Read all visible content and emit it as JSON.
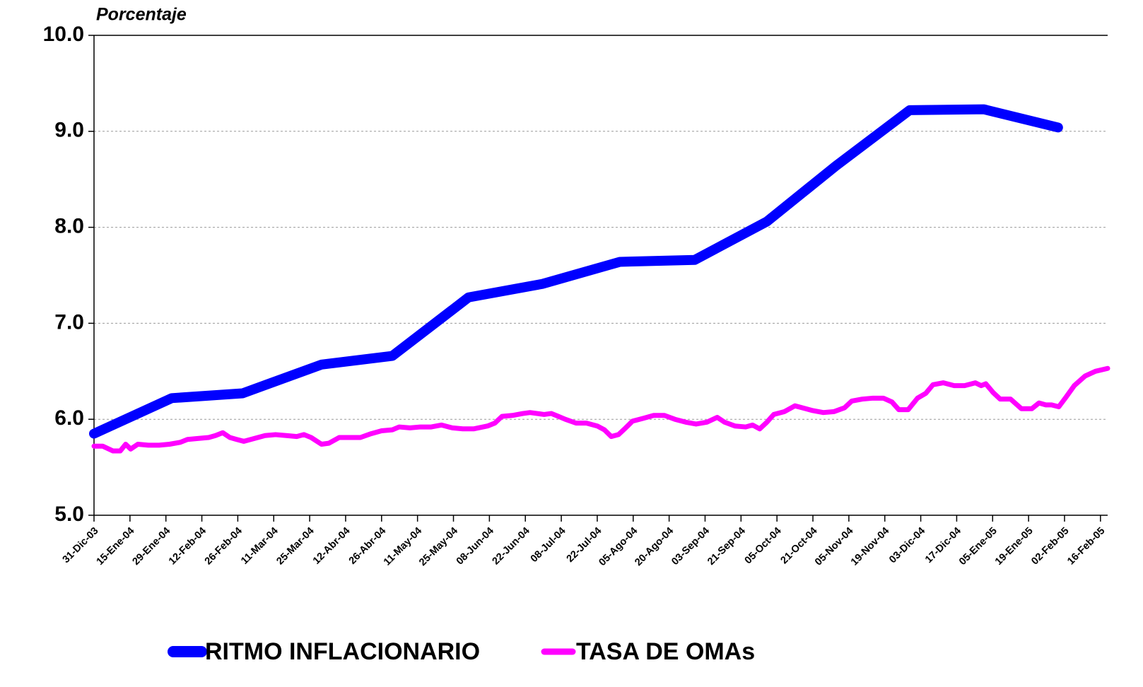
{
  "chart_data": {
    "type": "line",
    "y_axis_label": "Porcentaje",
    "ylim": [
      5,
      10
    ],
    "yticks": [
      {
        "value": 5,
        "label": "5.0"
      },
      {
        "value": 6,
        "label": "6.0"
      },
      {
        "value": 7,
        "label": "7.0"
      },
      {
        "value": 8,
        "label": "8.0"
      },
      {
        "value": 9,
        "label": "9.0"
      },
      {
        "value": 10,
        "label": "10.0"
      }
    ],
    "xlim": [
      0,
      28.2
    ],
    "xticks": [
      {
        "value": 0,
        "label": "31-Dic-03"
      },
      {
        "value": 1,
        "label": "15-Ene-04"
      },
      {
        "value": 2,
        "label": "29-Ene-04"
      },
      {
        "value": 3,
        "label": "12-Feb-04"
      },
      {
        "value": 4,
        "label": "26-Feb-04"
      },
      {
        "value": 5,
        "label": "11-Mar-04"
      },
      {
        "value": 6,
        "label": "25-Mar-04"
      },
      {
        "value": 7,
        "label": "12-Abr-04"
      },
      {
        "value": 8,
        "label": "26-Abr-04"
      },
      {
        "value": 9,
        "label": "11-May-04"
      },
      {
        "value": 10,
        "label": "25-May-04"
      },
      {
        "value": 11,
        "label": "08-Jun-04"
      },
      {
        "value": 12,
        "label": "22-Jun-04"
      },
      {
        "value": 13,
        "label": "08-Jul-04"
      },
      {
        "value": 14,
        "label": "22-Jul-04"
      },
      {
        "value": 15,
        "label": "05-Ago-04"
      },
      {
        "value": 16,
        "label": "20-Ago-04"
      },
      {
        "value": 17,
        "label": "03-Sep-04"
      },
      {
        "value": 18,
        "label": "21-Sep-04"
      },
      {
        "value": 19,
        "label": "05-Oct-04"
      },
      {
        "value": 20,
        "label": "21-Oct-04"
      },
      {
        "value": 21,
        "label": "05-Nov-04"
      },
      {
        "value": 22,
        "label": "19-Nov-04"
      },
      {
        "value": 23,
        "label": "03-Dic-04"
      },
      {
        "value": 24,
        "label": "17-Dic-04"
      },
      {
        "value": 25,
        "label": "05-Ene-05"
      },
      {
        "value": 26,
        "label": "19-Ene-05"
      },
      {
        "value": 27,
        "label": "02-Feb-05"
      },
      {
        "value": 28,
        "label": "16-Feb-05"
      }
    ],
    "grid": true,
    "legend": "bottom",
    "series": [
      {
        "name": "RITMO INFLACIONARIO",
        "color": "#0000ff",
        "x": [
          0,
          2.16,
          4.13,
          6.33,
          8.3,
          10.42,
          12.47,
          14.63,
          16.71,
          18.72,
          20.64,
          22.69,
          24.75,
          26.82
        ],
        "values": [
          5.85,
          6.22,
          6.27,
          6.57,
          6.66,
          7.27,
          7.41,
          7.64,
          7.66,
          8.06,
          8.64,
          9.22,
          9.23,
          9.04
        ]
      },
      {
        "name": "TASA DE OMAs",
        "color": "#ff00ff",
        "x": [
          0,
          0.24,
          0.53,
          0.73,
          0.88,
          1.02,
          1.22,
          1.51,
          1.81,
          2.1,
          2.4,
          2.6,
          2.89,
          3.19,
          3.38,
          3.58,
          3.78,
          3.97,
          4.17,
          4.46,
          4.76,
          5.05,
          5.35,
          5.64,
          5.84,
          6.04,
          6.33,
          6.53,
          6.82,
          7.12,
          7.41,
          7.71,
          8.0,
          8.3,
          8.49,
          8.79,
          9.08,
          9.38,
          9.67,
          9.97,
          10.26,
          10.56,
          10.95,
          11.15,
          11.35,
          11.64,
          11.93,
          12.13,
          12.33,
          12.52,
          12.72,
          12.92,
          13.11,
          13.41,
          13.7,
          14.0,
          14.2,
          14.39,
          14.59,
          14.79,
          14.98,
          15.28,
          15.57,
          15.87,
          16.16,
          16.46,
          16.75,
          17.05,
          17.34,
          17.54,
          17.83,
          18.13,
          18.32,
          18.52,
          18.72,
          18.91,
          19.21,
          19.5,
          19.8,
          20.0,
          20.29,
          20.59,
          20.88,
          21.08,
          21.37,
          21.67,
          21.96,
          22.2,
          22.39,
          22.65,
          22.91,
          23.14,
          23.34,
          23.63,
          23.93,
          24.22,
          24.52,
          24.68,
          24.81,
          25.01,
          25.21,
          25.5,
          25.8,
          26.09,
          26.29,
          26.48,
          26.64,
          26.84,
          27.04,
          27.27,
          27.57,
          27.86,
          28.2
        ],
        "values": [
          5.72,
          5.72,
          5.67,
          5.67,
          5.74,
          5.69,
          5.74,
          5.73,
          5.73,
          5.74,
          5.76,
          5.79,
          5.8,
          5.81,
          5.83,
          5.86,
          5.81,
          5.79,
          5.77,
          5.8,
          5.83,
          5.84,
          5.83,
          5.82,
          5.84,
          5.81,
          5.74,
          5.75,
          5.81,
          5.81,
          5.81,
          5.85,
          5.88,
          5.89,
          5.92,
          5.91,
          5.92,
          5.92,
          5.94,
          5.91,
          5.9,
          5.9,
          5.93,
          5.96,
          6.03,
          6.04,
          6.06,
          6.07,
          6.06,
          6.05,
          6.06,
          6.03,
          6.0,
          5.96,
          5.96,
          5.93,
          5.89,
          5.82,
          5.84,
          5.91,
          5.98,
          6.01,
          6.04,
          6.04,
          6.0,
          5.97,
          5.95,
          5.97,
          6.02,
          5.97,
          5.93,
          5.92,
          5.94,
          5.9,
          5.97,
          6.05,
          6.08,
          6.14,
          6.11,
          6.09,
          6.07,
          6.08,
          6.12,
          6.19,
          6.21,
          6.22,
          6.22,
          6.18,
          6.1,
          6.1,
          6.22,
          6.27,
          6.36,
          6.38,
          6.35,
          6.35,
          6.38,
          6.35,
          6.37,
          6.28,
          6.21,
          6.21,
          6.11,
          6.11,
          6.17,
          6.15,
          6.15,
          6.13,
          6.23,
          6.35,
          6.45,
          6.5,
          6.53
        ]
      }
    ]
  }
}
